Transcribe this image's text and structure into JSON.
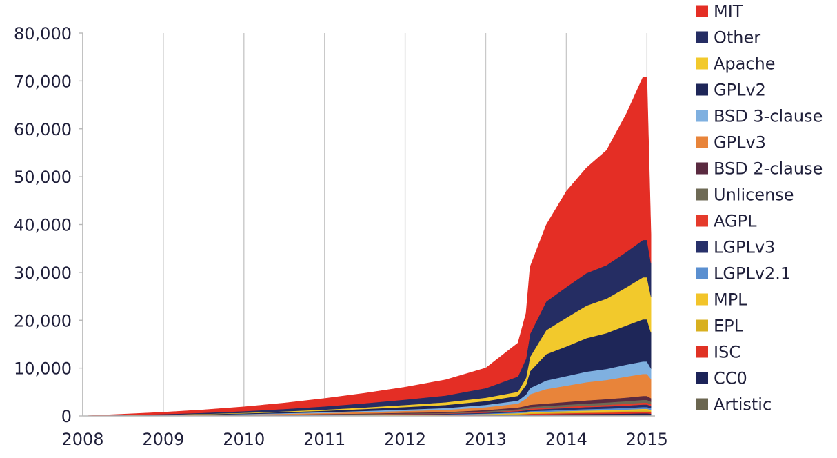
{
  "chart_data": {
    "type": "area",
    "stacked": true,
    "title": "",
    "xlabel": "",
    "ylabel": "",
    "x_ticks": [
      "2008",
      "2009",
      "2010",
      "2011",
      "2012",
      "2013",
      "2014",
      "2015"
    ],
    "y_ticks": [
      "0",
      "10,000",
      "20,000",
      "30,000",
      "40,000",
      "50,000",
      "60,000",
      "70,000",
      "80,000"
    ],
    "xlim": [
      2008,
      2015.1
    ],
    "ylim": [
      0,
      80000
    ],
    "grid": "vertical",
    "legend_position": "right",
    "x": [
      2008.0,
      2008.5,
      2009.0,
      2009.5,
      2010.0,
      2010.5,
      2011.0,
      2011.5,
      2012.0,
      2012.5,
      2013.0,
      2013.4,
      2013.5,
      2013.55,
      2013.75,
      2014.0,
      2014.25,
      2014.5,
      2014.75,
      2014.95,
      2015.0,
      2015.05
    ],
    "series": [
      {
        "name": "Artistic",
        "color": "#6b6650",
        "values": [
          0,
          2,
          5,
          8,
          10,
          14,
          20,
          26,
          34,
          40,
          60,
          90,
          110,
          120,
          140,
          150,
          160,
          170,
          180,
          200,
          200,
          180
        ]
      },
      {
        "name": "CC0",
        "color": "#1c2358",
        "values": [
          0,
          3,
          5,
          8,
          12,
          18,
          25,
          34,
          45,
          55,
          90,
          130,
          160,
          180,
          200,
          230,
          260,
          280,
          310,
          340,
          340,
          300
        ]
      },
      {
        "name": "ISC",
        "color": "#e03224",
        "values": [
          0,
          2,
          4,
          6,
          10,
          14,
          20,
          28,
          38,
          48,
          80,
          120,
          140,
          160,
          180,
          210,
          240,
          260,
          290,
          320,
          320,
          280
        ]
      },
      {
        "name": "EPL",
        "color": "#d8b020",
        "values": [
          0,
          3,
          5,
          8,
          12,
          18,
          25,
          32,
          42,
          50,
          75,
          110,
          130,
          150,
          170,
          190,
          210,
          230,
          250,
          280,
          280,
          240
        ]
      },
      {
        "name": "MPL",
        "color": "#f2c42a",
        "values": [
          0,
          3,
          6,
          10,
          15,
          22,
          30,
          40,
          52,
          62,
          95,
          140,
          160,
          180,
          200,
          230,
          260,
          280,
          310,
          340,
          340,
          300
        ]
      },
      {
        "name": "LGPLv2.1",
        "color": "#5a8fd0",
        "values": [
          0,
          5,
          10,
          16,
          24,
          34,
          45,
          58,
          72,
          85,
          120,
          170,
          200,
          220,
          240,
          270,
          300,
          320,
          350,
          380,
          380,
          340
        ]
      },
      {
        "name": "LGPLv3",
        "color": "#27306a",
        "values": [
          0,
          6,
          12,
          20,
          30,
          42,
          55,
          72,
          90,
          110,
          160,
          230,
          270,
          300,
          330,
          370,
          410,
          440,
          480,
          520,
          520,
          460
        ]
      },
      {
        "name": "AGPL",
        "color": "#e53a2b",
        "values": [
          0,
          4,
          8,
          13,
          20,
          28,
          38,
          50,
          64,
          78,
          120,
          170,
          200,
          220,
          250,
          280,
          310,
          340,
          370,
          400,
          400,
          360
        ]
      },
      {
        "name": "Unlicense",
        "color": "#6e6a55",
        "values": [
          0,
          6,
          12,
          20,
          30,
          42,
          58,
          76,
          96,
          118,
          180,
          260,
          300,
          340,
          380,
          420,
          460,
          500,
          540,
          580,
          580,
          520
        ]
      },
      {
        "name": "BSD 2-clause",
        "color": "#5a2a40",
        "values": [
          0,
          8,
          16,
          26,
          40,
          58,
          80,
          105,
          135,
          165,
          250,
          360,
          420,
          470,
          520,
          580,
          640,
          700,
          760,
          820,
          820,
          740
        ]
      },
      {
        "name": "GPLv3",
        "color": "#e8843a",
        "values": [
          0,
          20,
          45,
          80,
          120,
          170,
          230,
          300,
          380,
          460,
          600,
          800,
          1500,
          2200,
          3000,
          3400,
          3800,
          4000,
          4400,
          4600,
          4600,
          4000
        ]
      },
      {
        "name": "BSD 3-clause",
        "color": "#7fb0e0",
        "values": [
          0,
          15,
          30,
          50,
          80,
          120,
          170,
          230,
          300,
          380,
          480,
          620,
          900,
          1300,
          1800,
          2000,
          2200,
          2300,
          2500,
          2600,
          2600,
          2200
        ]
      },
      {
        "name": "GPLv2",
        "color": "#1e2658",
        "values": [
          0,
          30,
          60,
          100,
          150,
          220,
          300,
          400,
          520,
          640,
          800,
          1000,
          2000,
          3500,
          5500,
          6200,
          7000,
          7500,
          8200,
          8800,
          8800,
          7500
        ]
      },
      {
        "name": "Apache",
        "color": "#f2c92c",
        "values": [
          0,
          20,
          40,
          70,
          110,
          160,
          230,
          320,
          430,
          560,
          700,
          850,
          1500,
          3000,
          5000,
          6000,
          6800,
          7200,
          8000,
          8800,
          8800,
          7500
        ]
      },
      {
        "name": "Other",
        "color": "#252d63",
        "values": [
          0,
          60,
          130,
          220,
          340,
          490,
          670,
          880,
          1120,
          1400,
          2000,
          3200,
          4000,
          4800,
          6000,
          6400,
          6800,
          7000,
          7400,
          7800,
          7800,
          7000
        ]
      },
      {
        "name": "MIT",
        "color": "#e42e25",
        "values": [
          0,
          180,
          380,
          620,
          900,
          1250,
          1650,
          2100,
          2600,
          3300,
          4200,
          7000,
          9500,
          14000,
          16000,
          20000,
          22000,
          24000,
          29000,
          34000,
          34000,
          6000
        ]
      }
    ]
  }
}
